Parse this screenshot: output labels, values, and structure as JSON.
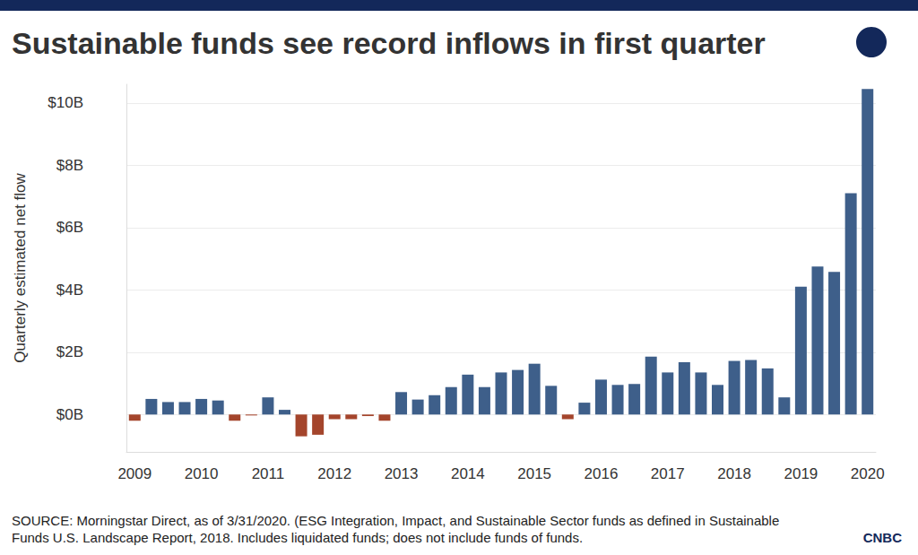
{
  "chart_data": {
    "type": "bar",
    "title": "Sustainable funds see record inflows in first quarter",
    "y_label": "Quarterly estimated net flow",
    "source": "SOURCE: Morningstar Direct, as of 3/31/2020. (ESG Integration, Impact, and Sustainable Sector funds as defined in Sustainable Funds U.S. Landscape Report, 2018. Includes liquidated funds; does not include funds of funds.",
    "logo": "CNBC",
    "categories": [
      "2009",
      null,
      null,
      null,
      "2010",
      null,
      null,
      null,
      "2011",
      null,
      null,
      null,
      "2012",
      null,
      null,
      null,
      "2013",
      null,
      null,
      null,
      "2014",
      null,
      null,
      null,
      "2015",
      null,
      null,
      null,
      "2016",
      null,
      null,
      null,
      "2017",
      null,
      null,
      null,
      "2018",
      null,
      null,
      null,
      "2019",
      null,
      null,
      null,
      "2020"
    ],
    "values": [
      -0.2,
      0.5,
      0.4,
      0.4,
      0.5,
      0.45,
      -0.2,
      -0.03,
      0.55,
      0.15,
      -0.7,
      -0.65,
      -0.15,
      -0.15,
      -0.05,
      -0.2,
      0.72,
      0.48,
      0.62,
      0.88,
      1.28,
      0.88,
      1.35,
      1.43,
      1.63,
      0.92,
      -0.15,
      0.38,
      1.12,
      0.95,
      0.98,
      1.86,
      1.35,
      1.68,
      1.35,
      0.95,
      1.72,
      1.75,
      1.48,
      0.55,
      4.1,
      4.75,
      4.58,
      7.1,
      10.45
    ],
    "colors": [
      "#a4452c",
      "#3e5f8a",
      "#3e5f8a",
      "#3e5f8a",
      "#3e5f8a",
      "#3e5f8a",
      "#a4452c",
      "#a4452c",
      "#3e5f8a",
      "#3e5f8a",
      "#a4452c",
      "#a4452c",
      "#a4452c",
      "#a4452c",
      "#a4452c",
      "#a4452c",
      "#3e5f8a",
      "#3e5f8a",
      "#3e5f8a",
      "#3e5f8a",
      "#3e5f8a",
      "#3e5f8a",
      "#3e5f8a",
      "#3e5f8a",
      "#3e5f8a",
      "#3e5f8a",
      "#a4452c",
      "#3e5f8a",
      "#3e5f8a",
      "#3e5f8a",
      "#3e5f8a",
      "#3e5f8a",
      "#3e5f8a",
      "#3e5f8a",
      "#3e5f8a",
      "#3e5f8a",
      "#3e5f8a",
      "#3e5f8a",
      "#3e5f8a",
      "#3e5f8a",
      "#3e5f8a",
      "#3e5f8a",
      "#3e5f8a",
      "#3e5f8a",
      "#3e5f8a"
    ],
    "ylim": [
      -1.2,
      10.6
    ],
    "yticks": [
      {
        "value": 0,
        "label": "$0B"
      },
      {
        "value": 2,
        "label": "$2B"
      },
      {
        "value": 4,
        "label": "$4B"
      },
      {
        "value": 6,
        "label": "$6B"
      },
      {
        "value": 8,
        "label": "$8B"
      },
      {
        "value": 10,
        "label": "$10B"
      }
    ],
    "grid": true
  }
}
